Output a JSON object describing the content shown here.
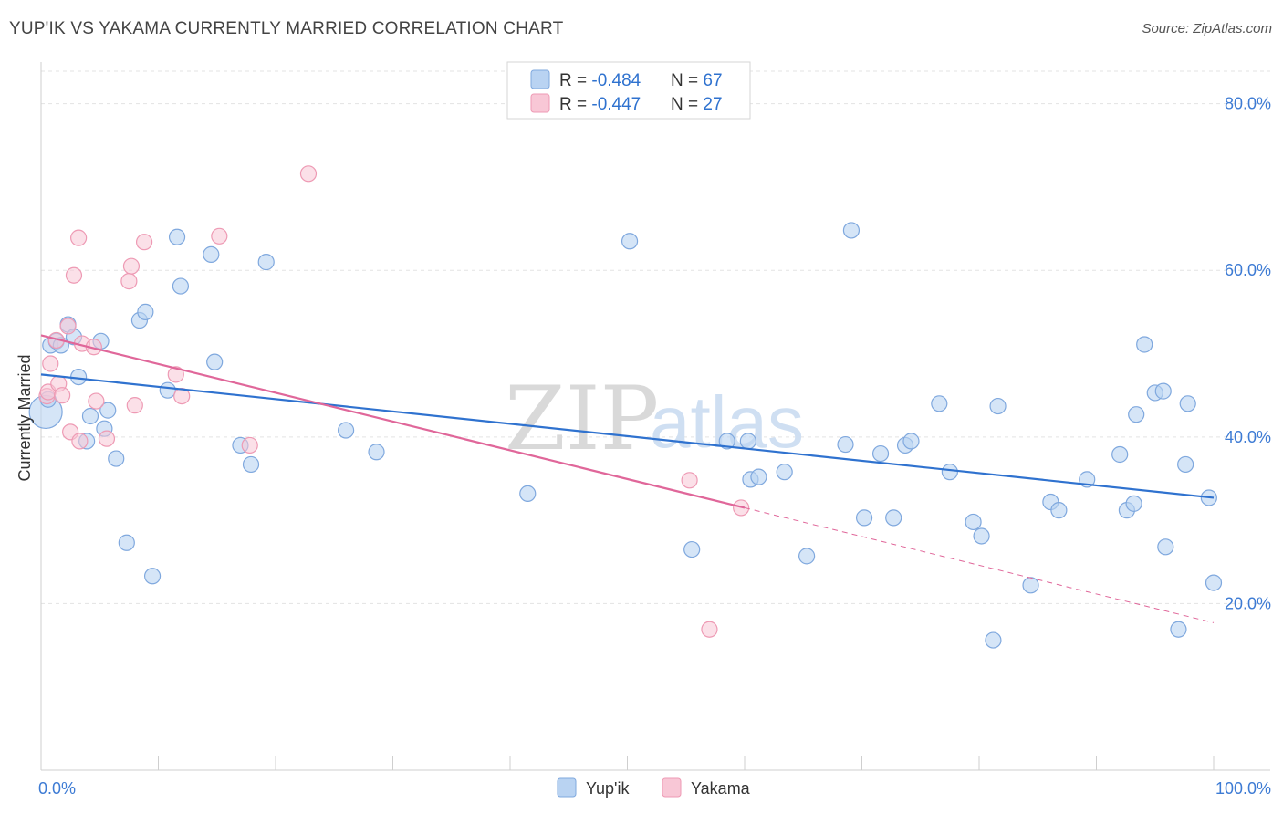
{
  "header": {
    "title": "YUP'IK VS YAKAMA CURRENTLY MARRIED CORRELATION CHART",
    "source": "Source: ZipAtlas.com"
  },
  "watermark": {
    "part1": "ZIP",
    "part2": "atlas"
  },
  "legend": {
    "rows": [
      {
        "r_label": "R = ",
        "r_value": "-0.484",
        "n_label": "N = ",
        "n_value": "67"
      },
      {
        "r_label": "R = ",
        "r_value": "-0.447",
        "n_label": "N = ",
        "n_value": "27"
      }
    ]
  },
  "bottom_legend": {
    "items": [
      "Yup'ik",
      "Yakama"
    ]
  },
  "chart_data": {
    "type": "scatter",
    "title": "YUP'IK VS YAKAMA CURRENTLY MARRIED CORRELATION CHART",
    "xlabel": "",
    "ylabel": "Currently Married",
    "xlim": [
      0,
      100
    ],
    "ylim": [
      0,
      85
    ],
    "x_tick_labels": [
      "0.0%",
      "100.0%"
    ],
    "y_ticks": [
      20,
      40,
      60,
      80
    ],
    "y_tick_labels": [
      "20.0%",
      "40.0%",
      "60.0%",
      "80.0%"
    ],
    "grid": true,
    "legend_position": "top-center",
    "colors": {
      "yupik_fill": "#b9d3f2",
      "yupik_stroke": "#7fa8de",
      "yupik_line": "#2f72cf",
      "yakama_fill": "#f8c7d6",
      "yakama_stroke": "#ee9ab4",
      "yakama_line": "#e0679a"
    },
    "series": [
      {
        "name": "Yup'ik",
        "r": -0.484,
        "n": 67,
        "trend": {
          "x": [
            0,
            100
          ],
          "y": [
            47.5,
            32.7
          ]
        },
        "points": [
          [
            0.4,
            43.0
          ],
          [
            0.6,
            44.5
          ],
          [
            0.8,
            51.0
          ],
          [
            1.3,
            51.5
          ],
          [
            1.7,
            51.0
          ],
          [
            2.3,
            53.5
          ],
          [
            2.8,
            52.0
          ],
          [
            3.2,
            47.2
          ],
          [
            3.9,
            39.5
          ],
          [
            4.2,
            42.5
          ],
          [
            5.1,
            51.5
          ],
          [
            5.4,
            41.0
          ],
          [
            5.7,
            43.2
          ],
          [
            6.4,
            37.4
          ],
          [
            7.3,
            27.3
          ],
          [
            8.4,
            54.0
          ],
          [
            8.9,
            55.0
          ],
          [
            9.5,
            23.3
          ],
          [
            10.8,
            45.6
          ],
          [
            11.6,
            64.0
          ],
          [
            11.9,
            58.1
          ],
          [
            14.5,
            61.9
          ],
          [
            14.8,
            49.0
          ],
          [
            17.0,
            39.0
          ],
          [
            17.9,
            36.7
          ],
          [
            19.2,
            61.0
          ],
          [
            26.0,
            40.8
          ],
          [
            28.6,
            38.2
          ],
          [
            41.5,
            33.2
          ],
          [
            50.2,
            63.5
          ],
          [
            55.5,
            26.5
          ],
          [
            58.5,
            39.5
          ],
          [
            60.3,
            39.5
          ],
          [
            60.5,
            34.9
          ],
          [
            61.2,
            35.2
          ],
          [
            63.4,
            35.8
          ],
          [
            65.3,
            25.7
          ],
          [
            68.6,
            39.1
          ],
          [
            69.1,
            64.8
          ],
          [
            70.2,
            30.3
          ],
          [
            71.6,
            38.0
          ],
          [
            72.7,
            30.3
          ],
          [
            73.7,
            39.0
          ],
          [
            74.2,
            39.5
          ],
          [
            76.6,
            44.0
          ],
          [
            77.5,
            35.8
          ],
          [
            79.5,
            29.8
          ],
          [
            80.2,
            28.1
          ],
          [
            81.2,
            15.6
          ],
          [
            81.6,
            43.7
          ],
          [
            84.4,
            22.2
          ],
          [
            86.1,
            32.2
          ],
          [
            86.8,
            31.2
          ],
          [
            89.2,
            34.9
          ],
          [
            92.0,
            37.9
          ],
          [
            92.6,
            31.2
          ],
          [
            93.2,
            32.0
          ],
          [
            93.4,
            42.7
          ],
          [
            94.1,
            51.1
          ],
          [
            95.0,
            45.3
          ],
          [
            95.7,
            45.5
          ],
          [
            95.9,
            26.8
          ],
          [
            97.0,
            16.9
          ],
          [
            97.6,
            36.7
          ],
          [
            97.8,
            44.0
          ],
          [
            99.6,
            32.7
          ],
          [
            100.0,
            22.5
          ]
        ]
      },
      {
        "name": "Yakama",
        "r": -0.447,
        "n": 27,
        "trend": {
          "x": [
            0,
            60.0
          ],
          "y": [
            52.2,
            31.5
          ]
        },
        "trend_dashed": {
          "x": [
            60.0,
            100.0
          ],
          "y": [
            31.5,
            17.7
          ]
        },
        "points": [
          [
            0.5,
            44.9
          ],
          [
            0.6,
            45.4
          ],
          [
            0.8,
            48.8
          ],
          [
            1.3,
            51.6
          ],
          [
            1.5,
            46.4
          ],
          [
            1.8,
            45.0
          ],
          [
            2.3,
            53.3
          ],
          [
            2.5,
            40.6
          ],
          [
            2.8,
            59.4
          ],
          [
            3.2,
            63.9
          ],
          [
            3.3,
            39.5
          ],
          [
            3.5,
            51.2
          ],
          [
            4.5,
            50.8
          ],
          [
            4.7,
            44.3
          ],
          [
            5.6,
            39.8
          ],
          [
            7.5,
            58.7
          ],
          [
            7.7,
            60.5
          ],
          [
            8.0,
            43.8
          ],
          [
            8.8,
            63.4
          ],
          [
            11.5,
            47.5
          ],
          [
            12.0,
            44.9
          ],
          [
            15.2,
            64.1
          ],
          [
            17.8,
            39.0
          ],
          [
            22.8,
            71.6
          ],
          [
            55.3,
            34.8
          ],
          [
            57.0,
            16.9
          ],
          [
            59.7,
            31.5
          ]
        ]
      }
    ]
  }
}
